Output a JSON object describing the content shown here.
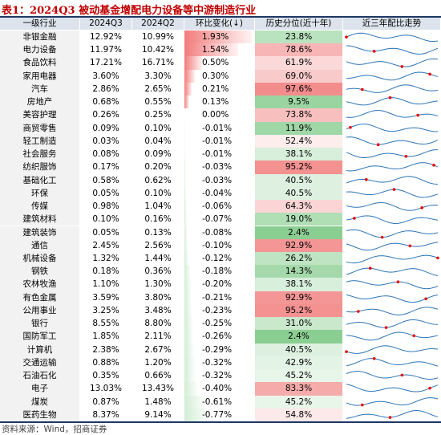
{
  "title": "表1：2024Q3 被动基金增配电力设备等中游制造行业",
  "table": {
    "header": [
      "一级行业",
      "2024Q3",
      "2024Q2",
      "环比变化(↓)",
      "历史分位(近十年)",
      "近三年配比走势"
    ],
    "rows": [
      [
        "非银金融",
        "12.92%",
        "10.99%",
        "1.93%",
        "23.8%"
      ],
      [
        "电力设备",
        "11.97%",
        "10.42%",
        "1.54%",
        "78.6%"
      ],
      [
        "食品饮料",
        "17.21%",
        "16.71%",
        "0.50%",
        "61.9%"
      ],
      [
        "家用电器",
        "3.60%",
        "3.30%",
        "0.30%",
        "69.0%"
      ],
      [
        "汽车",
        "2.86%",
        "2.65%",
        "0.21%",
        "97.6%"
      ],
      [
        "房地产",
        "0.68%",
        "0.55%",
        "0.13%",
        "9.5%"
      ],
      [
        "美容护理",
        "0.26%",
        "0.25%",
        "0.00%",
        "73.8%"
      ],
      [
        "商贸零售",
        "0.09%",
        "0.10%",
        "-0.01%",
        "11.9%"
      ],
      [
        "轻工制造",
        "0.03%",
        "0.04%",
        "-0.01%",
        "52.4%"
      ],
      [
        "社会服务",
        "0.08%",
        "0.09%",
        "-0.01%",
        "38.1%"
      ],
      [
        "纺织服饰",
        "0.17%",
        "0.20%",
        "-0.03%",
        "95.2%"
      ],
      [
        "基础化工",
        "0.58%",
        "0.62%",
        "-0.03%",
        "40.5%"
      ],
      [
        "环保",
        "0.05%",
        "0.10%",
        "-0.04%",
        "40.5%"
      ],
      [
        "传媒",
        "0.98%",
        "1.04%",
        "-0.06%",
        "64.3%"
      ],
      [
        "建筑材料",
        "0.10%",
        "0.16%",
        "-0.07%",
        "19.0%"
      ],
      [
        "建筑装饰",
        "0.05%",
        "0.13%",
        "-0.08%",
        "2.4%"
      ],
      [
        "通信",
        "2.45%",
        "2.56%",
        "-0.10%",
        "92.9%"
      ],
      [
        "机械设备",
        "1.32%",
        "1.44%",
        "-0.12%",
        "26.2%"
      ],
      [
        "钢铁",
        "0.18%",
        "0.36%",
        "-0.18%",
        "14.3%"
      ],
      [
        "农林牧渔",
        "1.10%",
        "1.30%",
        "-0.20%",
        "38.1%"
      ],
      [
        "有色金属",
        "3.59%",
        "3.80%",
        "-0.21%",
        "92.9%"
      ],
      [
        "公用事业",
        "3.25%",
        "3.48%",
        "-0.23%",
        "95.2%"
      ],
      [
        "银行",
        "8.55%",
        "8.80%",
        "-0.25%",
        "31.0%"
      ],
      [
        "国防军工",
        "1.85%",
        "2.11%",
        "-0.26%",
        "2.4%"
      ],
      [
        "计算机",
        "2.38%",
        "2.67%",
        "-0.29%",
        "40.5%"
      ],
      [
        "交通运输",
        "0.88%",
        "1.20%",
        "-0.32%",
        "42.9%"
      ],
      [
        "石油石化",
        "0.35%",
        "0.66%",
        "-0.32%",
        "45.2%"
      ],
      [
        "电子",
        "13.03%",
        "13.43%",
        "-0.40%",
        "83.3%"
      ],
      [
        "煤炭",
        "0.87%",
        "1.48%",
        "-0.61%",
        "45.2%"
      ],
      [
        "医药生物",
        "8.37%",
        "9.14%",
        "-0.77%",
        "54.8%"
      ]
    ]
  },
  "source": "资料来源：Wind，招商证券"
}
